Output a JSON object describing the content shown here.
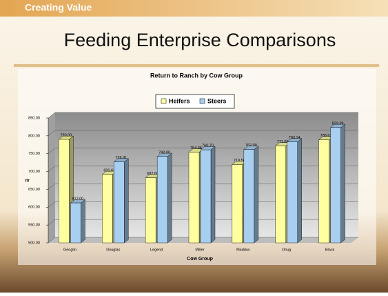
{
  "header": {
    "tag": "Creating Value",
    "title": "Feeding Enterprise Comparisons"
  },
  "chart_data": {
    "type": "bar",
    "title": "Return to Ranch by Cow Group",
    "x_label": "Cow Group",
    "y_label": "rtr",
    "categories": [
      "Geoglin",
      "Douglas",
      "Legend",
      "Miller",
      "Maddux",
      "Onug",
      "Black"
    ],
    "series": [
      {
        "name": "Heifers",
        "color": "#ffffa0",
        "values": [
          790.0,
          691.63,
          682.6,
          754.35,
          719.58,
          771.65,
          788.62
        ],
        "value_labels": [
          "790.00",
          "691.63",
          "682.60",
          "754.35",
          "719.58",
          "771.65",
          "788.62"
        ]
      },
      {
        "name": "Steers",
        "color": "#a8cef0",
        "values": [
          612.0,
          726.91,
          742.0,
          760.7,
          762.0,
          783.14,
          823.28
        ],
        "value_labels": [
          "612.00",
          "726.91",
          "742.00",
          "760.70",
          "762.00",
          "783.14",
          "823.28"
        ]
      }
    ],
    "ylim": [
      500,
      850
    ],
    "yticks": [
      {
        "value": 500,
        "label": "500.00"
      },
      {
        "value": 550,
        "label": "550.00"
      },
      {
        "value": 600,
        "label": "600.00"
      },
      {
        "value": 650,
        "label": "650.00"
      },
      {
        "value": 700,
        "label": "700.00"
      },
      {
        "value": 750,
        "label": "750.00"
      },
      {
        "value": 800,
        "label": "800.00"
      },
      {
        "value": 850,
        "label": "850.00"
      }
    ],
    "grid": true,
    "legend": "top"
  }
}
